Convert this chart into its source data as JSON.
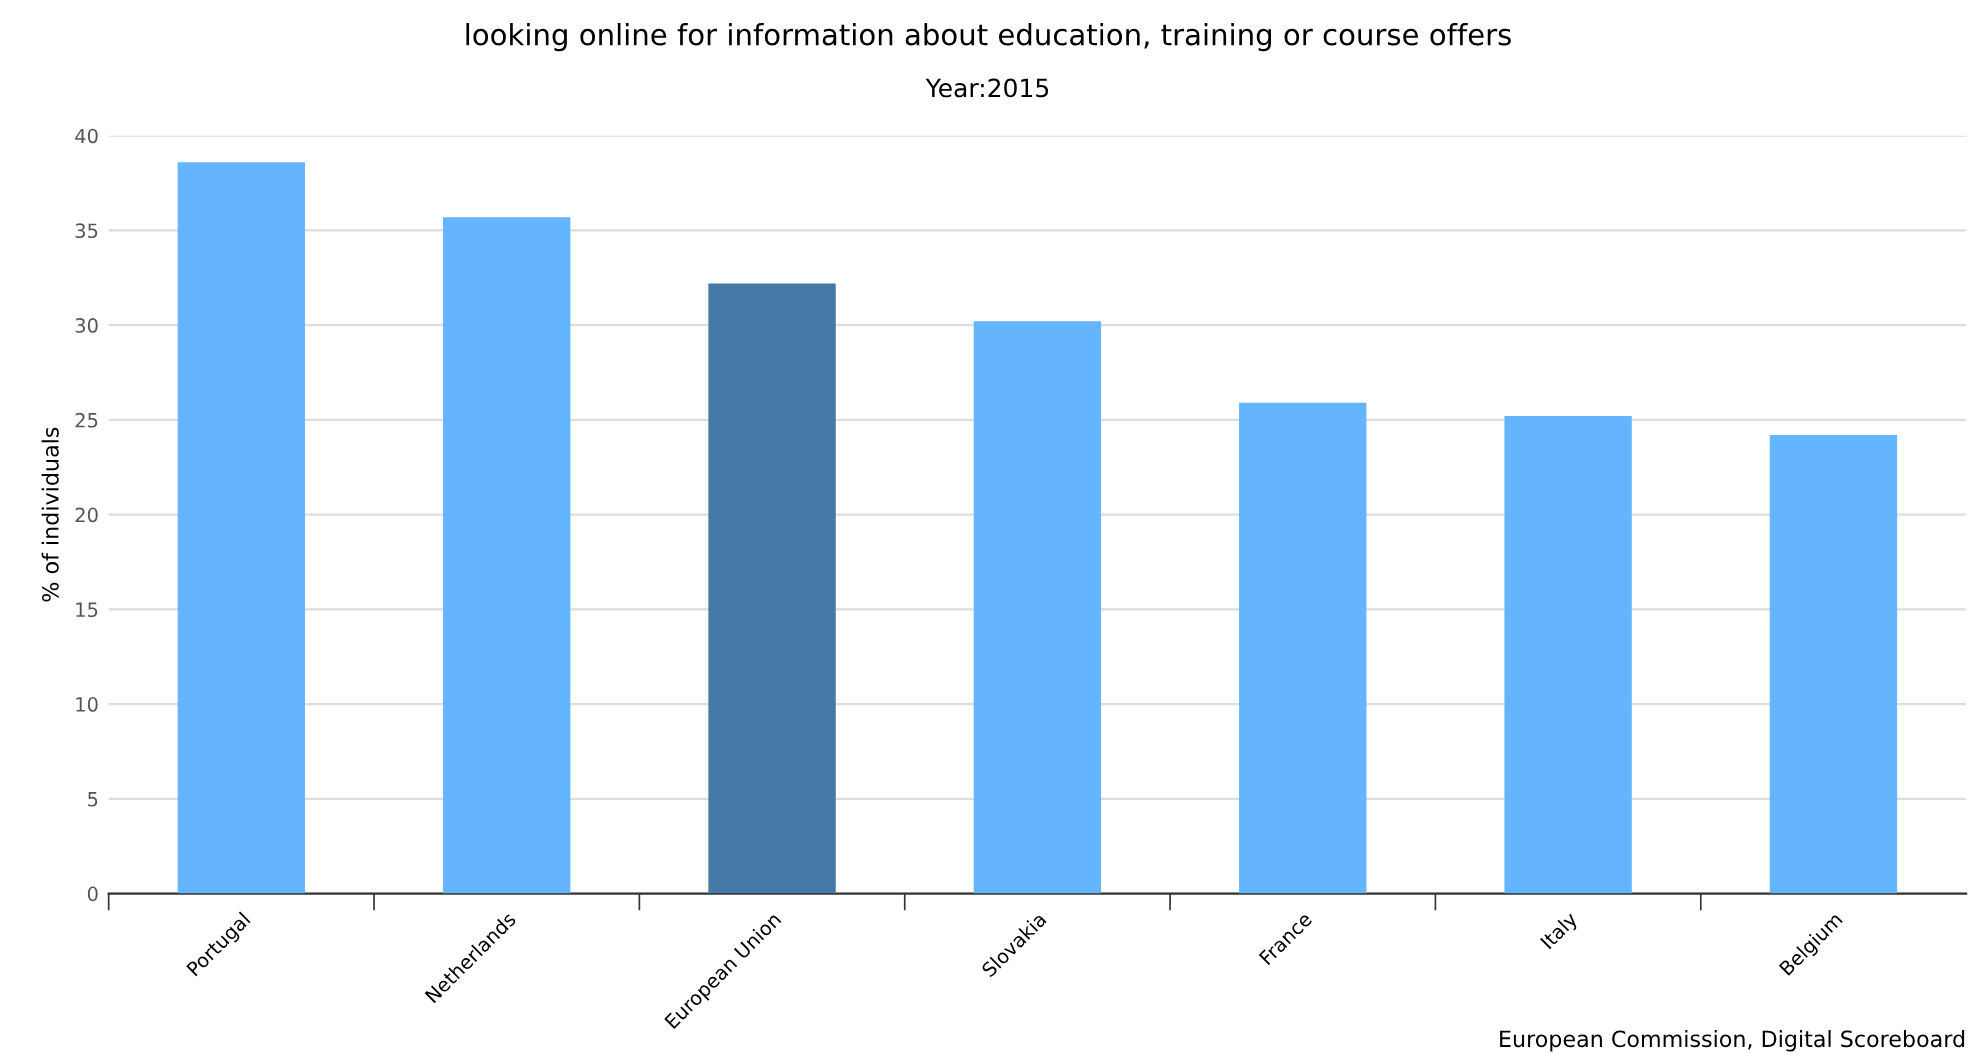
{
  "chart_data": {
    "type": "bar",
    "title": "looking online for information about education, training or course offers",
    "subtitle": "Year:2015",
    "ylabel": "% of individuals",
    "categories": [
      "Portugal",
      "Netherlands",
      "European Union",
      "Slovakia",
      "France",
      "Italy",
      "Belgium"
    ],
    "values": [
      38.6,
      35.7,
      32.2,
      30.2,
      25.9,
      25.2,
      24.2
    ],
    "colors": [
      "#64b5fd",
      "#64b5fd",
      "#4479a8",
      "#64b5fd",
      "#64b5fd",
      "#64b5fd",
      "#64b5fd"
    ],
    "ylim": [
      0,
      40
    ],
    "yticks": [
      0,
      5,
      10,
      15,
      20,
      25,
      30,
      35,
      40
    ],
    "grid": "y",
    "annotations": [
      "European Commission, Digital Scoreboard"
    ]
  }
}
